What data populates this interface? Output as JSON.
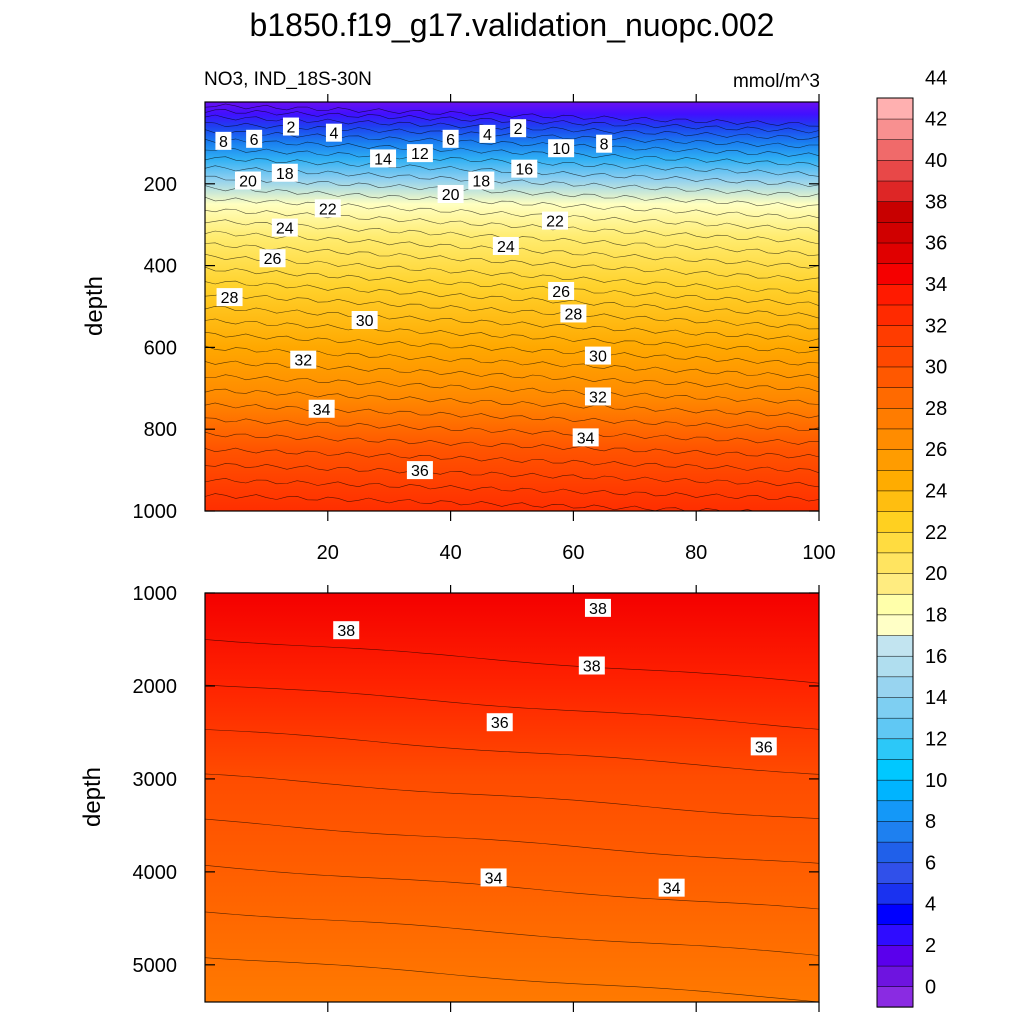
{
  "title": "b1850.f19_g17.validation_nuopc.002",
  "variable_label": "NO3, IND_18S-30N",
  "units_label": "mmol/m^3",
  "chart_data": [
    {
      "type": "contour",
      "panel": "upper",
      "xlabel": "",
      "ylabel": "depth",
      "xlim": [
        0,
        100
      ],
      "ylim": [
        1000,
        0
      ],
      "xticks": [
        20,
        40,
        60,
        80,
        100
      ],
      "yticks": [
        200,
        400,
        600,
        800,
        1000
      ],
      "contour_interval": 2,
      "contour_labels": [
        {
          "value": 8,
          "x": 3,
          "y": 95
        },
        {
          "value": 6,
          "x": 8,
          "y": 90
        },
        {
          "value": 2,
          "x": 14,
          "y": 60
        },
        {
          "value": 4,
          "x": 21,
          "y": 75
        },
        {
          "value": 6,
          "x": 40,
          "y": 90
        },
        {
          "value": 4,
          "x": 46,
          "y": 78
        },
        {
          "value": 2,
          "x": 51,
          "y": 64
        },
        {
          "value": 10,
          "x": 58,
          "y": 113
        },
        {
          "value": 8,
          "x": 65,
          "y": 102
        },
        {
          "value": 12,
          "x": 35,
          "y": 125
        },
        {
          "value": 14,
          "x": 29,
          "y": 138
        },
        {
          "value": 16,
          "x": 52,
          "y": 163
        },
        {
          "value": 18,
          "x": 13,
          "y": 173
        },
        {
          "value": 18,
          "x": 45,
          "y": 192
        },
        {
          "value": 20,
          "x": 7,
          "y": 192
        },
        {
          "value": 20,
          "x": 40,
          "y": 225
        },
        {
          "value": 22,
          "x": 20,
          "y": 260
        },
        {
          "value": 22,
          "x": 57,
          "y": 290
        },
        {
          "value": 24,
          "x": 13,
          "y": 307
        },
        {
          "value": 24,
          "x": 49,
          "y": 352
        },
        {
          "value": 26,
          "x": 11,
          "y": 382
        },
        {
          "value": 26,
          "x": 58,
          "y": 462
        },
        {
          "value": 28,
          "x": 4,
          "y": 477
        },
        {
          "value": 28,
          "x": 60,
          "y": 517
        },
        {
          "value": 30,
          "x": 26,
          "y": 533
        },
        {
          "value": 30,
          "x": 64,
          "y": 620
        },
        {
          "value": 32,
          "x": 16,
          "y": 630
        },
        {
          "value": 32,
          "x": 64,
          "y": 720
        },
        {
          "value": 34,
          "x": 19,
          "y": 750
        },
        {
          "value": 34,
          "x": 62,
          "y": 820
        },
        {
          "value": 36,
          "x": 35,
          "y": 900
        }
      ]
    },
    {
      "type": "contour",
      "panel": "lower",
      "xlabel": "",
      "ylabel": "depth",
      "xlim": [
        0,
        100
      ],
      "ylim": [
        5400,
        1000
      ],
      "yticks": [
        1000,
        2000,
        3000,
        4000,
        5000
      ],
      "contour_interval": 2,
      "contour_labels": [
        {
          "value": 38,
          "x": 23,
          "y": 1400
        },
        {
          "value": 38,
          "x": 64,
          "y": 1160
        },
        {
          "value": 38,
          "x": 63,
          "y": 1780
        },
        {
          "value": 36,
          "x": 48,
          "y": 2390
        },
        {
          "value": 36,
          "x": 91,
          "y": 2650
        },
        {
          "value": 34,
          "x": 47,
          "y": 4060
        },
        {
          "value": 34,
          "x": 76,
          "y": 4170
        }
      ]
    }
  ],
  "colorbar": {
    "labels": [
      "0",
      "2",
      "4",
      "6",
      "8",
      "10",
      "12",
      "14",
      "16",
      "18",
      "20",
      "22",
      "24",
      "26",
      "28",
      "30",
      "32",
      "34",
      "36",
      "38",
      "40",
      "42",
      "44"
    ],
    "colors": [
      "#8a2be2",
      "#6e14e0",
      "#5a00ec",
      "#2f0cff",
      "#0000ff",
      "#1a32f0",
      "#3050ea",
      "#2060ea",
      "#1e80f0",
      "#1498f8",
      "#00b4ff",
      "#00c8ff",
      "#2cc8f8",
      "#60c8f4",
      "#7ecff2",
      "#98d4f0",
      "#b0deef",
      "#c2e4f0",
      "#ffffc6",
      "#ffffaa",
      "#ffec80",
      "#ffe460",
      "#ffdc40",
      "#ffd020",
      "#ffbe10",
      "#ffac00",
      "#ff9c00",
      "#ff8c00",
      "#ff7c00",
      "#ff6a00",
      "#ff5800",
      "#ff4800",
      "#ff3c00",
      "#ff2a00",
      "#ff1a00",
      "#f50000",
      "#e00000",
      "#d00000",
      "#c80000",
      "#de2626",
      "#e84848",
      "#f06a6a",
      "#f89090",
      "#ffb0b0"
    ]
  }
}
